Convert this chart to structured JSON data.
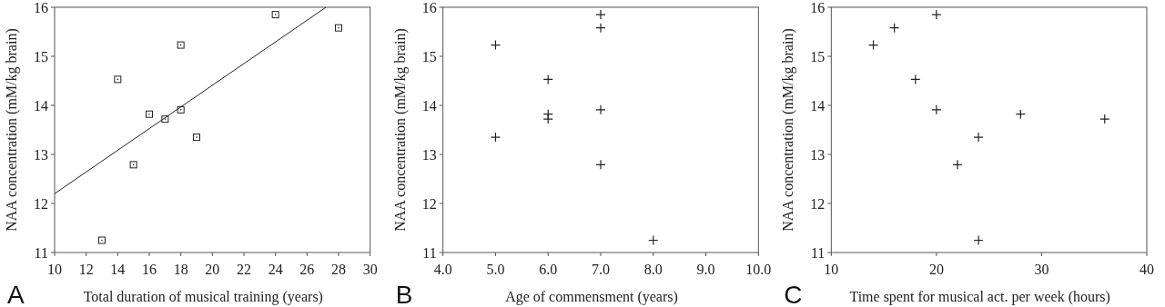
{
  "chart_data": [
    {
      "type": "scatter",
      "xlabel": "Total duration of musical training (years)",
      "ylabel": "NAA concentration (mM/kg brain)",
      "annotations": [
        "A"
      ],
      "xlim": [
        10,
        30
      ],
      "xticks": [
        10,
        12,
        14,
        16,
        18,
        20,
        22,
        24,
        26,
        28,
        30
      ],
      "ylim": [
        11,
        16
      ],
      "yticks": [
        11,
        12,
        13,
        14,
        15,
        16
      ],
      "series": [
        {
          "marker": "square",
          "color": "#222222",
          "x": [
            13,
            14,
            15,
            16,
            17,
            18,
            18,
            19,
            24,
            28
          ],
          "values": [
            11.25,
            14.53,
            12.79,
            13.82,
            13.72,
            15.23,
            13.91,
            13.35,
            15.85,
            15.58
          ]
        },
        {
          "type": "line",
          "marker": "none",
          "color": "#222222",
          "x": [
            10,
            27.2
          ],
          "values": [
            12.2,
            16
          ]
        }
      ]
    },
    {
      "type": "scatter",
      "xlabel": "Age of commensment (years)",
      "ylabel": "NAA concentration (mM/kg brain)",
      "annotations": [
        "B"
      ],
      "xlim": [
        4,
        10
      ],
      "xticks": [
        {
          "value": 4,
          "label": "4.0"
        },
        {
          "value": 5,
          "label": "5.0"
        },
        {
          "value": 6,
          "label": "6.0"
        },
        {
          "value": 7,
          "label": "7.0"
        },
        {
          "value": 8,
          "label": "8.0"
        },
        {
          "value": 9,
          "label": "9.0"
        },
        {
          "value": 10,
          "label": "10.0"
        }
      ],
      "ylim": [
        11,
        16
      ],
      "yticks": [
        11,
        12,
        13,
        14,
        15,
        16
      ],
      "series": [
        {
          "marker": "cross",
          "color": "#222222",
          "x": [
            5,
            5,
            6,
            6,
            6,
            7,
            7,
            7,
            7,
            8
          ],
          "values": [
            15.23,
            13.35,
            14.53,
            13.82,
            13.72,
            15.85,
            15.58,
            13.91,
            12.79,
            11.25
          ]
        }
      ]
    },
    {
      "type": "scatter",
      "xlabel": "Time spent for musical act. per week (hours)",
      "ylabel": "NAA concentration (mM/kg brain)",
      "annotations": [
        "C"
      ],
      "xlim": [
        10,
        40
      ],
      "xticks": [
        10,
        20,
        30,
        40
      ],
      "ylim": [
        11,
        16
      ],
      "yticks": [
        11,
        12,
        13,
        14,
        15,
        16
      ],
      "series": [
        {
          "marker": "cross",
          "color": "#222222",
          "x": [
            14,
            16,
            18,
            20,
            20,
            22,
            24,
            24,
            28,
            36
          ],
          "values": [
            15.23,
            15.58,
            14.53,
            15.85,
            13.91,
            12.79,
            13.35,
            11.25,
            13.82,
            13.72
          ]
        }
      ]
    }
  ]
}
